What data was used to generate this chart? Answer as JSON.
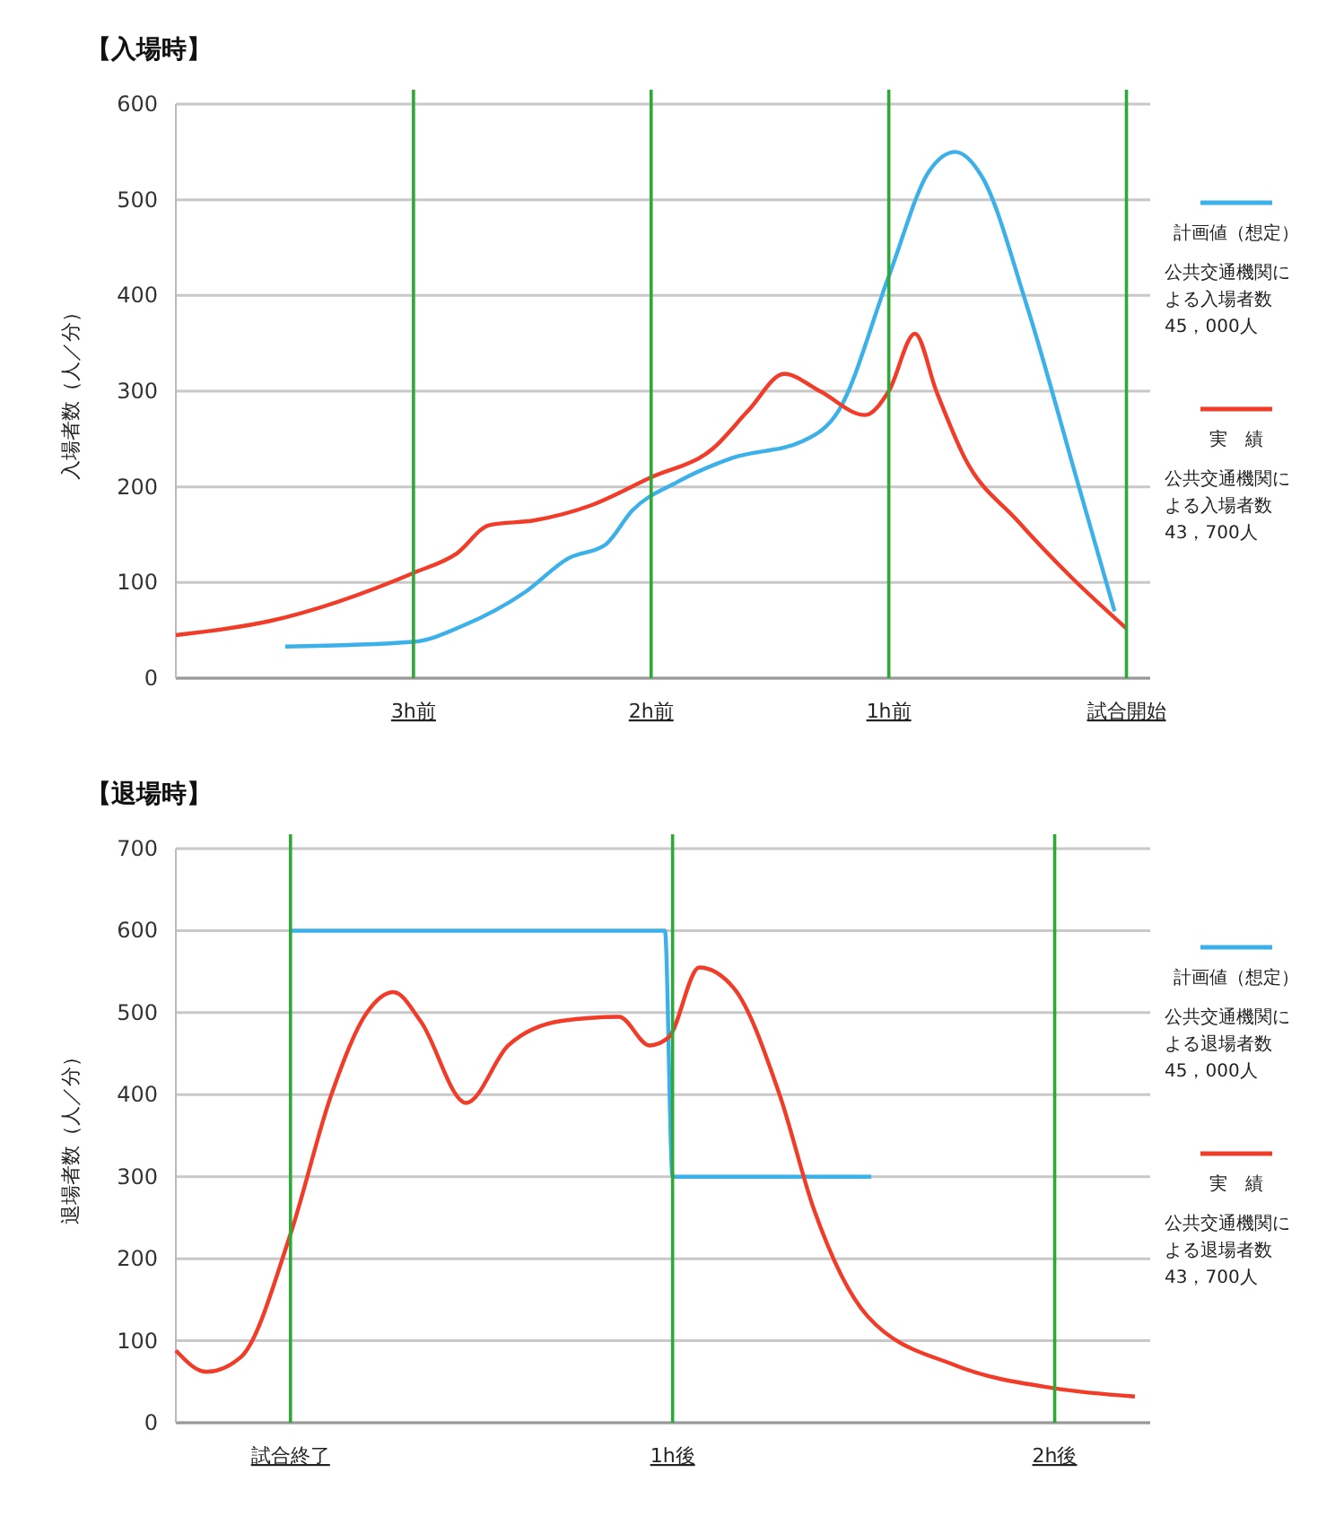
{
  "chart_data": [
    {
      "type": "line",
      "title": "【入場時】",
      "ylabel": "入場者数（人／分）",
      "xlim": [
        -4,
        0.1
      ],
      "xticks": [
        {
          "value": -3,
          "label": "3h前"
        },
        {
          "value": -2,
          "label": "2h前"
        },
        {
          "value": -1,
          "label": "1h前"
        },
        {
          "value": 0,
          "label": "試合開始"
        }
      ],
      "ylim": [
        0,
        600
      ],
      "yticks": [
        0,
        100,
        200,
        300,
        400,
        500,
        600
      ],
      "grid": "y",
      "legend": "right",
      "series": [
        {
          "name": "計画値（想定）",
          "color": "#3cb0e8",
          "x": [
            -3.54,
            -3,
            -2.79,
            -2.53,
            -2.35,
            -2.19,
            -2.08,
            -1.89,
            -1.66,
            -1.36,
            -1.21,
            -1,
            -0.83,
            -0.72,
            -0.61,
            -0.42,
            -0.2,
            -0.05
          ],
          "values": [
            33,
            38,
            55,
            90,
            125,
            140,
            175,
            205,
            230,
            248,
            280,
            420,
            530,
            550,
            525,
            390,
            200,
            70
          ]
        },
        {
          "name": "実　績",
          "color": "#f03c28",
          "x": [
            -4,
            -3.6,
            -3,
            -2.82,
            -2.68,
            -2.49,
            -2.26,
            -2,
            -1.74,
            -1.59,
            -1.44,
            -1.29,
            -1.1,
            -1,
            -0.89,
            -0.8,
            -0.68,
            -0.46,
            -0.23,
            0
          ],
          "values": [
            45,
            60,
            110,
            130,
            160,
            165,
            180,
            210,
            240,
            280,
            318,
            300,
            275,
            300,
            360,
            300,
            230,
            165,
            105,
            52
          ]
        }
      ],
      "ref_lines": [
        {
          "axis": "x",
          "value": -3,
          "color": "#2ea836"
        },
        {
          "axis": "x",
          "value": -2,
          "color": "#2ea836"
        },
        {
          "axis": "x",
          "value": -1,
          "color": "#2ea836"
        },
        {
          "axis": "x",
          "value": 0,
          "color": "#2ea836"
        }
      ],
      "annotations": [
        "公共交通機関による入場者数45，000人",
        "公共交通機関による入場者数43，700人"
      ]
    },
    {
      "type": "line",
      "title": "【退場時】",
      "ylabel": "退場者数（人／分）",
      "xlim": [
        -0.3,
        2.25
      ],
      "xticks": [
        {
          "value": 0,
          "label": "試合終了"
        },
        {
          "value": 1,
          "label": "1h後"
        },
        {
          "value": 2,
          "label": "2h後"
        }
      ],
      "ylim": [
        0,
        700
      ],
      "yticks": [
        0,
        100,
        200,
        300,
        400,
        500,
        600,
        700
      ],
      "grid": "y",
      "legend": "right",
      "series": [
        {
          "name": "計画値（想定）",
          "color": "#3cb0e8",
          "x": [
            0,
            0.98,
            1,
            1.52
          ],
          "values": [
            600,
            600,
            300,
            300
          ]
        },
        {
          "name": "実　績",
          "color": "#f03c28",
          "x": [
            -0.3,
            -0.22,
            -0.13,
            0,
            0.107,
            0.2,
            0.27,
            0.34,
            0.46,
            0.57,
            0.71,
            0.86,
            0.94,
            0.99,
            1.07,
            1.16,
            1.28,
            1.37,
            1.51,
            1.74,
            2,
            2.21
          ],
          "values": [
            88,
            62,
            80,
            230,
            400,
            500,
            525,
            490,
            390,
            460,
            490,
            495,
            460,
            470,
            555,
            530,
            400,
            260,
            130,
            70,
            42,
            32
          ]
        }
      ],
      "ref_lines": [
        {
          "axis": "x",
          "value": 0,
          "color": "#2ea836"
        },
        {
          "axis": "x",
          "value": 1,
          "color": "#2ea836"
        },
        {
          "axis": "x",
          "value": 2,
          "color": "#2ea836"
        }
      ],
      "annotations": [
        "公共交通機関による退場者数45，000人",
        "公共交通機関による退場者数43，700人"
      ]
    }
  ]
}
